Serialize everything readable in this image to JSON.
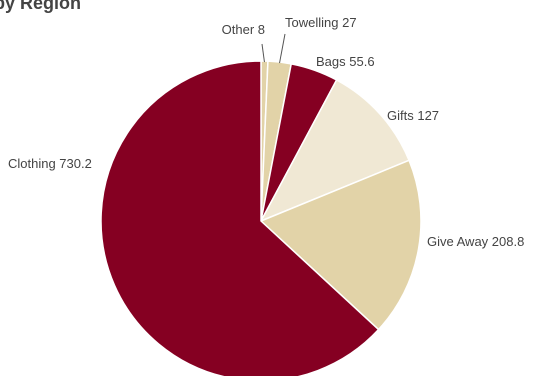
{
  "chart_data": {
    "type": "pie",
    "title": "by Region",
    "categories": [
      "Other",
      "Towelling",
      "Bags",
      "Gifts",
      "Give Away",
      "Clothing"
    ],
    "values": [
      8,
      27,
      55.6,
      127,
      208.8,
      730.2
    ],
    "labels": [
      "Other 8",
      "Towelling 27",
      "Bags 55.6",
      "Gifts 127",
      "Give Away 208.8",
      "Clothing 730.2"
    ],
    "colors": [
      "#e2d3a8",
      "#e2d3a8",
      "#850022",
      "#f0e8d4",
      "#e2d3a8",
      "#850022"
    ],
    "legend": "none"
  }
}
